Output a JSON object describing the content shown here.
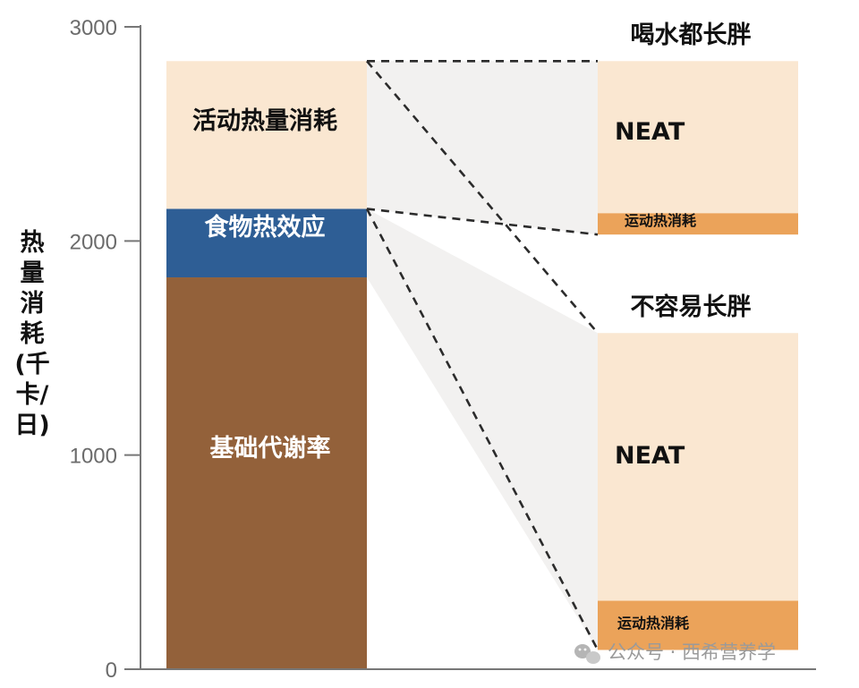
{
  "chart_data": {
    "type": "bar",
    "ylabel": "热量消耗(千卡/日)",
    "ylim": [
      0,
      3000
    ],
    "yticks": [
      "0",
      "1000",
      "2000",
      "3000"
    ],
    "main_bar": {
      "segments": [
        {
          "name": "基础代谢率",
          "value": 1830,
          "color": "#93613a",
          "label_color": "#ffffff"
        },
        {
          "name": "食物热效应",
          "value": 320,
          "color": "#2e5e95",
          "label_color": "#ffffff"
        },
        {
          "name": "活动热量消耗",
          "value": 690,
          "color": "#fae7d1",
          "label_color": "#111111"
        }
      ]
    },
    "breakdowns": [
      {
        "title": "喝水都长胖",
        "range": [
          2030,
          2840
        ],
        "segments": [
          {
            "name": "运动热消耗",
            "value": 100,
            "color": "#eba35a",
            "label_color": "#111111"
          },
          {
            "name": "NEAT",
            "value": 710,
            "color": "#fae7d1",
            "label_color": "#111111"
          }
        ]
      },
      {
        "title": "不容易长胖",
        "range": [
          90,
          1570
        ],
        "segments": [
          {
            "name": "运动热消耗",
            "value": 230,
            "color": "#eba35a",
            "label_color": "#111111"
          },
          {
            "name": "NEAT",
            "value": 1250,
            "color": "#fae7d1",
            "label_color": "#111111"
          }
        ]
      }
    ]
  },
  "watermark": {
    "text": "公众号 · 西希营养学",
    "icon": "wechat-icon"
  }
}
